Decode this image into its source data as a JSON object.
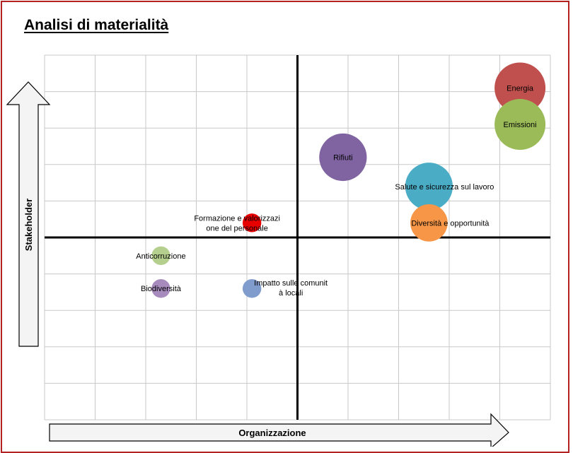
{
  "title": "Analisi di materialità",
  "colors": {
    "frame": "#b22222",
    "grid": "#c8c8c8",
    "axis": "#000000"
  },
  "chart_data": {
    "type": "bubble",
    "title": "Analisi di materialità",
    "xlabel": "Organizzazione",
    "ylabel": "Stakeholder",
    "xlim": [
      -5,
      5
    ],
    "ylim": [
      -5,
      5
    ],
    "grid": true,
    "legend": "none",
    "points": [
      {
        "label": "Energia",
        "x": 4.4,
        "y": 4.1,
        "size": 3,
        "color": "#c0504d"
      },
      {
        "label": "Emissioni",
        "x": 4.4,
        "y": 3.1,
        "size": 3,
        "color": "#9bbb59"
      },
      {
        "label": "Rifiuti",
        "x": 0.9,
        "y": 2.2,
        "size": 2.8,
        "color": "#8064a2"
      },
      {
        "label": "Salute e sicurezza sul lavoro",
        "x": 2.6,
        "y": 1.4,
        "size": 2.8,
        "color": "#4bacc6"
      },
      {
        "label": "Diversità e opportunità",
        "x": 2.6,
        "y": 0.4,
        "size": 2.2,
        "color": "#f79646"
      },
      {
        "label": "Formazione e valorizzazione del personale",
        "x": -0.9,
        "y": 0.4,
        "size": 1.1,
        "color": "#e60000"
      },
      {
        "label": "Anticorruzione",
        "x": -2.7,
        "y": -0.5,
        "size": 1.1,
        "color": "#b5cf8e"
      },
      {
        "label": "Biodiversità",
        "x": -2.7,
        "y": -1.4,
        "size": 1.1,
        "color": "#a88bbd"
      },
      {
        "label": "Impatto sulle comunità locali",
        "x": -0.9,
        "y": -1.4,
        "size": 1.1,
        "color": "#7f9ccc"
      }
    ]
  }
}
